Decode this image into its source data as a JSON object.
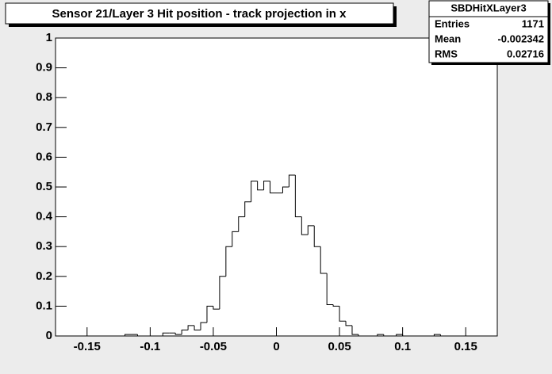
{
  "chart_data": {
    "type": "histogram",
    "title": "Sensor 21/Layer 3 Hit position - track projection in x",
    "bins": [
      -0.175,
      -0.17,
      -0.165,
      -0.16,
      -0.155,
      -0.15,
      -0.145,
      -0.14,
      -0.135,
      -0.13,
      -0.125,
      -0.12,
      -0.115,
      -0.11,
      -0.105,
      -0.1,
      -0.095,
      -0.09,
      -0.085,
      -0.08,
      -0.075,
      -0.07,
      -0.065,
      -0.06,
      -0.055,
      -0.05,
      -0.045,
      -0.04,
      -0.035,
      -0.03,
      -0.025,
      -0.02,
      -0.015,
      -0.01,
      -0.005,
      0,
      0.005,
      0.01,
      0.015,
      0.02,
      0.025,
      0.03,
      0.035,
      0.04,
      0.045,
      0.05,
      0.055,
      0.06,
      0.065,
      0.07,
      0.075,
      0.08,
      0.085,
      0.09,
      0.095,
      0.1,
      0.105,
      0.11,
      0.115,
      0.12,
      0.125,
      0.13,
      0.135,
      0.14,
      0.145,
      0.15,
      0.155,
      0.16,
      0.165,
      0.17,
      0.175
    ],
    "values": [
      0,
      0,
      0,
      0,
      0,
      0,
      0,
      0,
      0,
      0,
      0,
      0.005,
      0.005,
      0,
      0,
      0,
      0,
      0.01,
      0.01,
      0.005,
      0.02,
      0.035,
      0.02,
      0.045,
      0.1,
      0.09,
      0.2,
      0.3,
      0.35,
      0.4,
      0.45,
      0.52,
      0.49,
      0.52,
      0.48,
      0.48,
      0.5,
      0.54,
      0.4,
      0.34,
      0.37,
      0.3,
      0.21,
      0.105,
      0.1,
      0.05,
      0.035,
      0.005,
      0,
      0,
      0,
      0.005,
      0,
      0,
      0.005,
      0,
      0,
      0,
      0,
      0,
      0.005,
      0,
      0,
      0,
      0,
      0,
      0,
      0,
      0,
      0
    ],
    "color": "#000000",
    "xlim": [
      -0.175,
      0.175
    ],
    "ylim": [
      0,
      1
    ],
    "xticks": [
      -0.15,
      -0.1,
      -0.05,
      0,
      0.05,
      0.1,
      0.15
    ],
    "yticks": [
      0,
      0.1,
      0.2,
      0.3,
      0.4,
      0.5,
      0.6,
      0.7,
      0.8,
      0.9,
      1
    ],
    "grid": false,
    "stats": {
      "name": "SBDHitXLayer3",
      "rows": [
        {
          "label": "Entries",
          "value": 1171
        },
        {
          "label": "Mean",
          "value": -0.002342
        },
        {
          "label": "RMS",
          "value": 0.02716
        }
      ]
    }
  }
}
